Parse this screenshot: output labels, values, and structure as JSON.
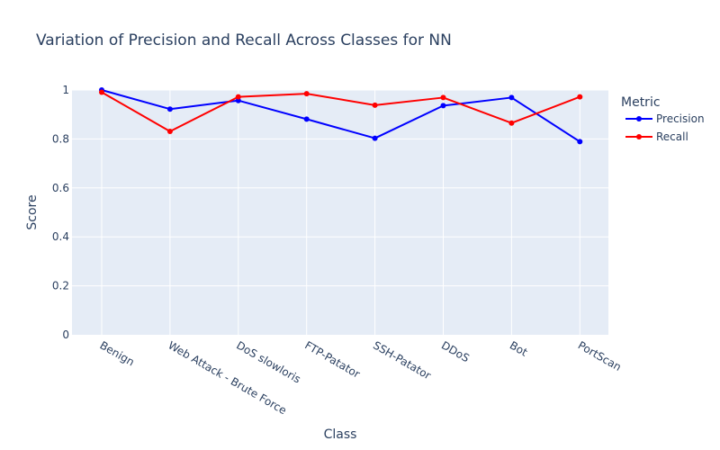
{
  "chart_data": {
    "type": "line",
    "title": "Variation of Precision and Recall Across Classes for NN",
    "xlabel": "Class",
    "ylabel": "Score",
    "categories": [
      "Benign",
      "Web Attack - Brute Force",
      "DoS slowloris",
      "FTP-Patator",
      "SSH-Patator",
      "DDoS",
      "Bot",
      "PortScan"
    ],
    "ylim": [
      0,
      1
    ],
    "yticks": [
      0,
      0.2,
      0.4,
      0.6,
      0.8,
      1
    ],
    "ytick_labels": [
      "0",
      "0.2",
      "0.4",
      "0.6",
      "0.8",
      "1"
    ],
    "grid": true,
    "legend_title": "Metric",
    "legend_position": "right",
    "series": [
      {
        "name": "Precision",
        "color": "#0000ff",
        "values": [
          1.0,
          0.922,
          0.957,
          0.881,
          0.803,
          0.936,
          0.969,
          0.789
        ]
      },
      {
        "name": "Recall",
        "color": "#ff0000",
        "values": [
          0.991,
          0.831,
          0.972,
          0.985,
          0.938,
          0.969,
          0.865,
          0.972
        ]
      }
    ]
  }
}
